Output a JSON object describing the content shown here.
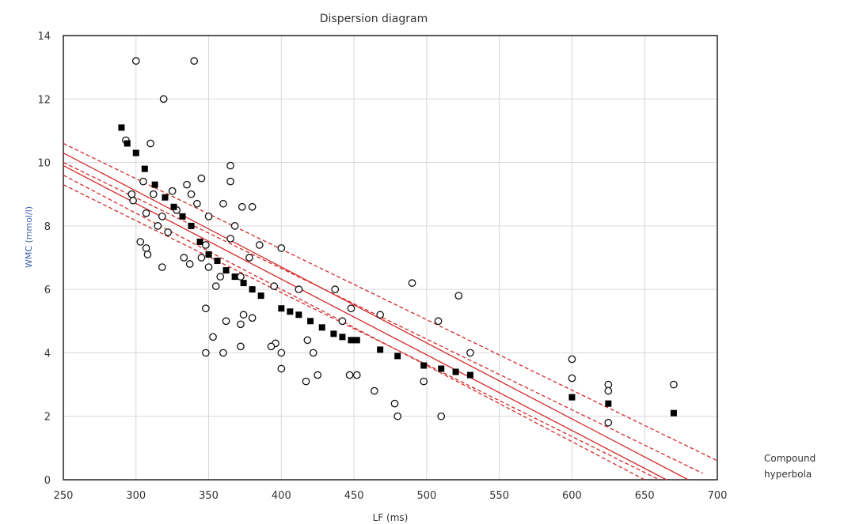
{
  "chart_data": {
    "type": "scatter",
    "title": "Dispersion diagram",
    "xlabel": "LF (ms)",
    "ylabel": "WMC (mmol/l)",
    "xlim": [
      250,
      700
    ],
    "ylim": [
      0,
      14
    ],
    "xticks": [
      "250",
      "300",
      "350",
      "400",
      "450",
      "500",
      "550",
      "600",
      "650",
      "700"
    ],
    "yticks": [
      "0",
      "2",
      "4",
      "6",
      "8",
      "10",
      "12",
      "14"
    ],
    "grid": true,
    "annotation": "Compound hyperbola",
    "colors": {
      "regression": "#d42a2a",
      "points": "#000000"
    },
    "series": [
      {
        "marker": "open-circle",
        "points": [
          [
            300,
            13.2
          ],
          [
            340,
            13.2
          ],
          [
            319,
            12.0
          ],
          [
            293,
            10.7
          ],
          [
            310,
            10.6
          ],
          [
            365,
            9.9
          ],
          [
            345,
            9.5
          ],
          [
            365,
            9.4
          ],
          [
            305,
            9.4
          ],
          [
            335,
            9.3
          ],
          [
            297,
            9.0
          ],
          [
            312,
            9.0
          ],
          [
            325,
            9.1
          ],
          [
            338,
            9.0
          ],
          [
            298,
            8.8
          ],
          [
            342,
            8.7
          ],
          [
            307,
            8.4
          ],
          [
            318,
            8.3
          ],
          [
            360,
            8.7
          ],
          [
            373,
            8.6
          ],
          [
            380,
            8.6
          ],
          [
            328,
            8.5
          ],
          [
            350,
            8.3
          ],
          [
            368,
            8.0
          ],
          [
            315,
            8.0
          ],
          [
            322,
            7.8
          ],
          [
            303,
            7.5
          ],
          [
            307,
            7.3
          ],
          [
            348,
            7.4
          ],
          [
            365,
            7.6
          ],
          [
            385,
            7.4
          ],
          [
            400,
            7.3
          ],
          [
            308,
            7.1
          ],
          [
            333,
            7.0
          ],
          [
            345,
            7.0
          ],
          [
            378,
            7.0
          ],
          [
            318,
            6.7
          ],
          [
            337,
            6.8
          ],
          [
            350,
            6.7
          ],
          [
            358,
            6.4
          ],
          [
            372,
            6.4
          ],
          [
            355,
            6.1
          ],
          [
            395,
            6.1
          ],
          [
            412,
            6.0
          ],
          [
            437,
            6.0
          ],
          [
            490,
            6.2
          ],
          [
            522,
            5.8
          ],
          [
            348,
            5.4
          ],
          [
            374,
            5.2
          ],
          [
            380,
            5.1
          ],
          [
            448,
            5.4
          ],
          [
            468,
            5.2
          ],
          [
            362,
            5.0
          ],
          [
            372,
            4.9
          ],
          [
            442,
            5.0
          ],
          [
            508,
            5.0
          ],
          [
            353,
            4.5
          ],
          [
            396,
            4.3
          ],
          [
            372,
            4.2
          ],
          [
            393,
            4.2
          ],
          [
            418,
            4.4
          ],
          [
            348,
            4.0
          ],
          [
            360,
            4.0
          ],
          [
            400,
            4.0
          ],
          [
            422,
            4.0
          ],
          [
            530,
            4.0
          ],
          [
            400,
            3.5
          ],
          [
            425,
            3.3
          ],
          [
            447,
            3.3
          ],
          [
            452,
            3.3
          ],
          [
            417,
            3.1
          ],
          [
            498,
            3.1
          ],
          [
            464,
            2.8
          ],
          [
            478,
            2.4
          ],
          [
            480,
            2.0
          ],
          [
            510,
            2.0
          ],
          [
            600,
            3.8
          ],
          [
            600,
            3.2
          ],
          [
            625,
            3.0
          ],
          [
            625,
            2.8
          ],
          [
            625,
            1.8
          ],
          [
            670,
            3.0
          ]
        ]
      },
      {
        "marker": "filled-square",
        "points": [
          [
            290,
            11.1
          ],
          [
            294,
            10.6
          ],
          [
            300,
            10.3
          ],
          [
            306,
            9.8
          ],
          [
            313,
            9.3
          ],
          [
            320,
            8.9
          ],
          [
            326,
            8.6
          ],
          [
            332,
            8.3
          ],
          [
            338,
            8.0
          ],
          [
            344,
            7.5
          ],
          [
            350,
            7.1
          ],
          [
            356,
            6.9
          ],
          [
            362,
            6.6
          ],
          [
            368,
            6.4
          ],
          [
            374,
            6.2
          ],
          [
            380,
            6.0
          ],
          [
            386,
            5.8
          ],
          [
            400,
            5.4
          ],
          [
            406,
            5.3
          ],
          [
            412,
            5.2
          ],
          [
            420,
            5.0
          ],
          [
            428,
            4.8
          ],
          [
            436,
            4.6
          ],
          [
            442,
            4.5
          ],
          [
            448,
            4.4
          ],
          [
            452,
            4.4
          ],
          [
            468,
            4.1
          ],
          [
            480,
            3.9
          ],
          [
            498,
            3.6
          ],
          [
            510,
            3.5
          ],
          [
            520,
            3.4
          ],
          [
            530,
            3.3
          ],
          [
            600,
            2.6
          ],
          [
            625,
            2.4
          ],
          [
            670,
            2.1
          ]
        ]
      }
    ],
    "regression_lines": [
      {
        "style": "solid",
        "points": [
          [
            250,
            10.3
          ],
          [
            680,
            0.0
          ]
        ]
      },
      {
        "style": "solid",
        "points": [
          [
            250,
            9.9
          ],
          [
            665,
            0.0
          ]
        ]
      },
      {
        "style": "dashed",
        "points": [
          [
            250,
            10.6
          ],
          [
            700,
            0.6
          ]
        ]
      },
      {
        "style": "dashed",
        "points": [
          [
            250,
            9.6
          ],
          [
            650,
            0.0
          ]
        ]
      },
      {
        "style": "dashed",
        "points": [
          [
            250,
            10.0
          ],
          [
            690,
            0.2
          ]
        ]
      },
      {
        "style": "dashed",
        "points": [
          [
            250,
            9.3
          ],
          [
            660,
            0.0
          ]
        ]
      }
    ]
  }
}
